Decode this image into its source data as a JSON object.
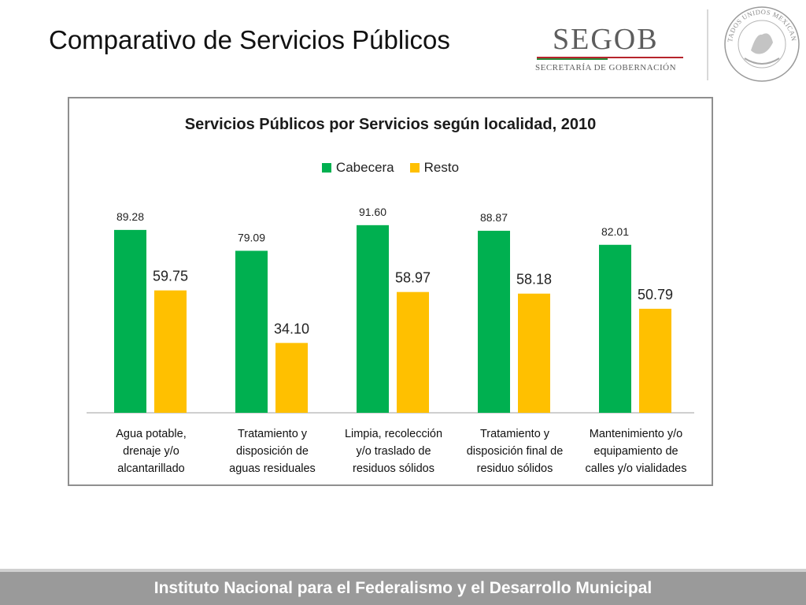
{
  "slide": {
    "title": "Comparativo de Servicios Públicos",
    "footer": "Instituto Nacional para el Federalismo y el Desarrollo Municipal"
  },
  "logo": {
    "name": "SEGOB",
    "subtitle": "SECRETARÍA DE GOBERNACIÓN",
    "seal_text": "ESTADOS UNIDOS MEXICANOS"
  },
  "colors": {
    "cabecera": "#00b050",
    "resto": "#ffc000",
    "footer": "#9a9a9a"
  },
  "chart_data": {
    "type": "bar",
    "title": "Servicios Públicos por Servicios según localidad, 2010",
    "legend_position": "top",
    "grid": false,
    "xlabel": "",
    "ylabel": "",
    "ylim": [
      0,
      100
    ],
    "categories": [
      [
        "Agua potable,",
        "drenaje y/o",
        "alcantarillado"
      ],
      [
        "Tratamiento y",
        "disposición de",
        "aguas residuales"
      ],
      [
        "Limpia, recolección",
        "y/o traslado de",
        "residuos sólidos"
      ],
      [
        "Tratamiento y",
        "disposición final de",
        "residuo sólidos"
      ],
      [
        "Mantenimiento y/o",
        "equipamiento de",
        "calles y/o vialidades"
      ]
    ],
    "series": [
      {
        "name": "Cabecera",
        "color": "#00b050",
        "values": [
          89.28,
          79.09,
          91.6,
          88.87,
          82.01
        ],
        "labels": [
          "89.28",
          "79.09",
          "91.60",
          "88.87",
          "82.01"
        ]
      },
      {
        "name": "Resto",
        "color": "#ffc000",
        "values": [
          59.75,
          34.1,
          58.97,
          58.18,
          50.79
        ],
        "labels": [
          "59.75",
          "34.10",
          "58.97",
          "58.18",
          "50.79"
        ]
      }
    ]
  }
}
